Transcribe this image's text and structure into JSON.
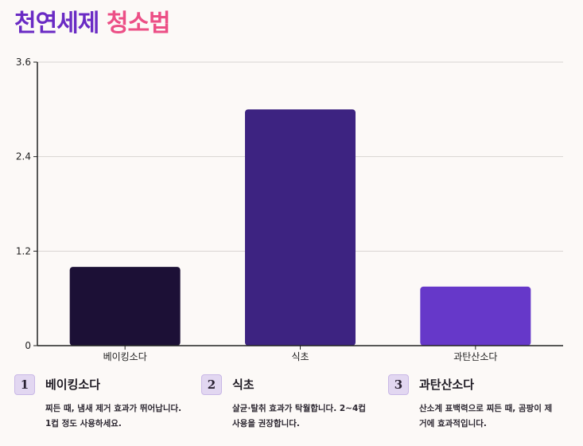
{
  "title": {
    "part1": "천연세제",
    "part2": "청소법"
  },
  "colors": {
    "title_part1": "#6a2bc4",
    "title_part2": "#ec4f86",
    "badge_bg": "#e2d7f1"
  },
  "chart_data": {
    "type": "bar",
    "title": "",
    "xlabel": "",
    "ylabel": "",
    "categories": [
      "베이킹소다",
      "식초",
      "과탄산소다"
    ],
    "values": [
      1.0,
      3.0,
      0.75
    ],
    "bar_colors": [
      "#1c1036",
      "#3d2381",
      "#6638c9"
    ],
    "ylim": [
      0,
      3.6
    ],
    "yticks": [
      "0",
      "1.2",
      "2.4",
      "3.6"
    ],
    "grid": true
  },
  "cards": [
    {
      "num": "1",
      "title": "베이킹소다",
      "desc": "찌든 때, 냄새 제거 효과가 뛰어납니다. 1컵 정도 사용하세요."
    },
    {
      "num": "2",
      "title": "식초",
      "desc": "살균·탈취 효과가 탁월합니다. 2~4컵 사용을 권장합니다."
    },
    {
      "num": "3",
      "title": "과탄산소다",
      "desc": "산소계 표백력으로 찌든 때, 곰팡이 제거에 효과적입니다."
    }
  ]
}
